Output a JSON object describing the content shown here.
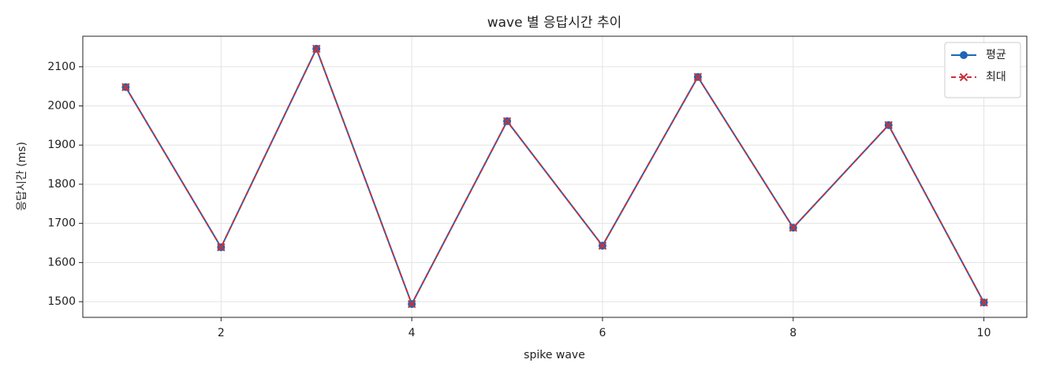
{
  "chart_data": {
    "type": "line",
    "title": "wave 별 응답시간 추이",
    "xlabel": "spike wave",
    "ylabel": "응답시간 (ms)",
    "x": [
      1,
      2,
      3,
      4,
      5,
      6,
      7,
      8,
      9,
      10
    ],
    "series": [
      {
        "name": "평균",
        "color": "#1f66b5",
        "marker": "o",
        "dash": false,
        "values": [
          2048,
          1639,
          2146,
          1494,
          1961,
          1643,
          2074,
          1689,
          1951,
          1498
        ]
      },
      {
        "name": "최대",
        "color": "#c8323a",
        "marker": "x",
        "dash": true,
        "values": [
          2048,
          1639,
          2146,
          1494,
          1961,
          1643,
          2074,
          1689,
          1951,
          1498
        ]
      }
    ],
    "xlim": [
      0.55,
      10.45
    ],
    "ylim": [
      1460,
      2178
    ],
    "xticks": [
      2,
      4,
      6,
      8,
      10
    ],
    "yticks": [
      1500,
      1600,
      1700,
      1800,
      1900,
      2000,
      2100
    ],
    "grid": true,
    "legend": "upper right"
  }
}
